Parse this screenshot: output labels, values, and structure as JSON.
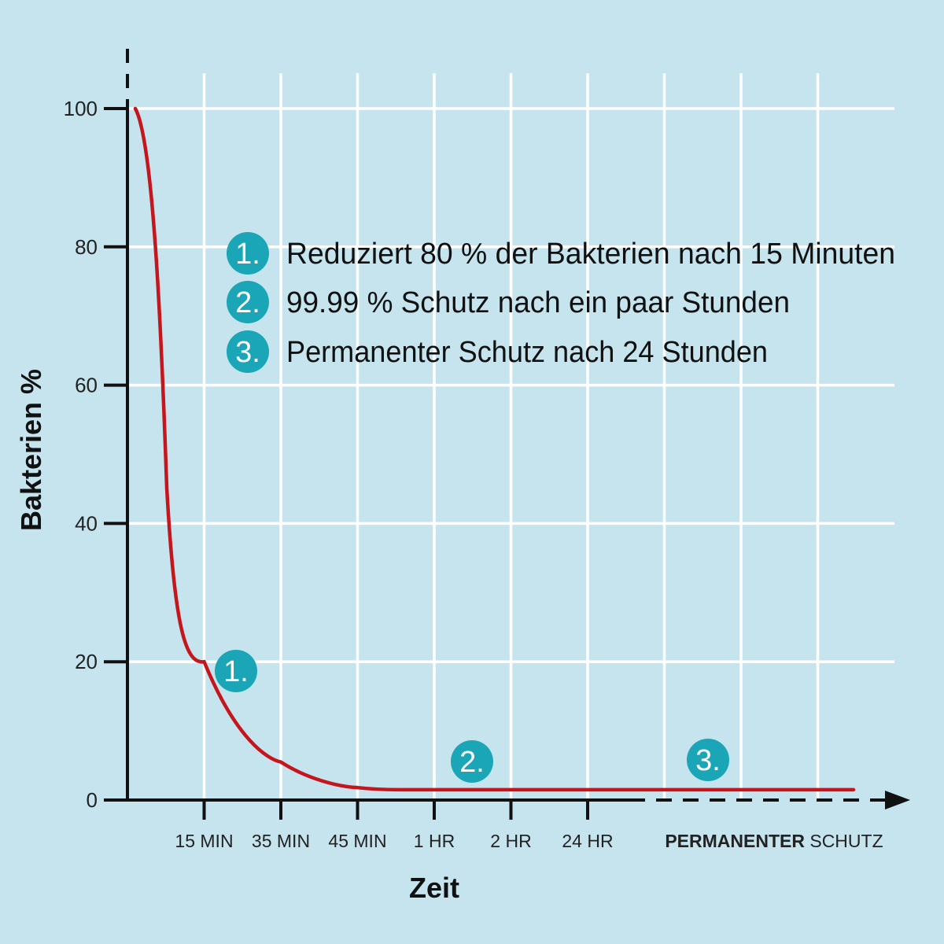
{
  "chart_data": {
    "type": "line",
    "ylabel": "Bakterien %",
    "xlabel": "Zeit",
    "ylim": [
      0,
      100
    ],
    "yticks": [
      0,
      20,
      40,
      60,
      80,
      100
    ],
    "x_categories": [
      "15 MIN",
      "35 MIN",
      "45 MIN",
      "1 HR",
      "2 HR",
      "24 HR"
    ],
    "x_end_label_bold": "PERMANENTER",
    "x_end_label_rest": " SCHUTZ",
    "grid": true,
    "series": [
      {
        "color": "#c4161c",
        "x": [
          0,
          1,
          2,
          3,
          4,
          5,
          6,
          7,
          8,
          9
        ],
        "y": [
          100,
          20,
          5.5,
          1.8,
          1.5,
          1.5,
          1.5,
          1.5,
          1.5,
          1.5
        ]
      }
    ],
    "legend": [
      {
        "badge": "1.",
        "text": "Reduziert 80 % der Bakterien nach 15 Minuten"
      },
      {
        "badge": "2.",
        "text": "99.99 % Schutz nach ein paar Stunden"
      },
      {
        "badge": "3.",
        "text": "Permanenter Schutz nach 24 Stunden"
      }
    ],
    "annotations": [
      {
        "badge": "1.",
        "near": "15 MIN"
      },
      {
        "badge": "2.",
        "near": "1 HR – 2 HR"
      },
      {
        "badge": "3.",
        "near": "PERMANENTER SCHUTZ"
      }
    ],
    "colors": {
      "background": "#c5e4ee",
      "grid": "#ffffff",
      "badge": "#1aa6b7",
      "line": "#c4161c"
    }
  }
}
